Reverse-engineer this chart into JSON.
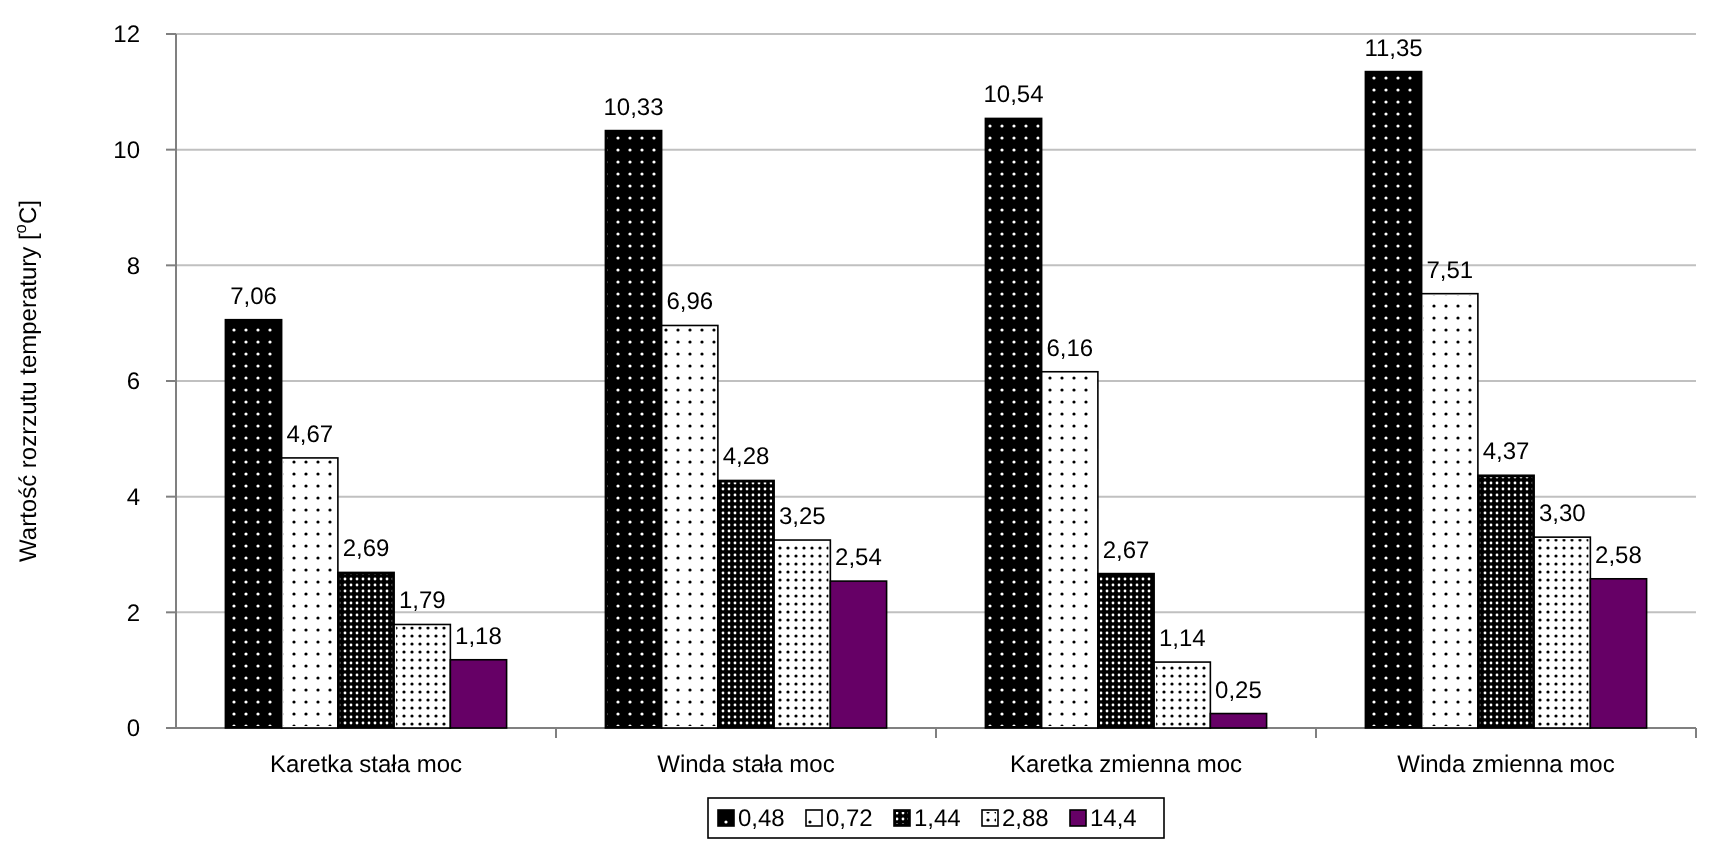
{
  "chart_data": {
    "type": "bar",
    "ylabel": "Wartość rozrzutu temperatury [$^{o}$C]",
    "categories": [
      "Karetka stała moc",
      "Winda stała moc",
      "Karetka zmienna moc",
      "Winda zmienna moc"
    ],
    "series": [
      {
        "name": "0,48",
        "color": "#000000",
        "values": [
          7.06,
          10.33,
          10.54,
          11.35
        ],
        "value_labels": [
          "7,06",
          "10,33",
          "10,54",
          "11,35"
        ]
      },
      {
        "name": "0,72",
        "color": "#ffffff",
        "values": [
          4.67,
          6.96,
          6.16,
          7.51
        ],
        "value_labels": [
          "4,67",
          "6,96",
          "6,16",
          "7,51"
        ]
      },
      {
        "name": "1,44",
        "color": "#000000",
        "values": [
          2.69,
          4.28,
          2.67,
          4.37
        ],
        "value_labels": [
          "2,69",
          "4,28",
          "2,67",
          "4,37"
        ]
      },
      {
        "name": "2,88",
        "color": "#ffffff",
        "values": [
          1.79,
          3.25,
          1.14,
          3.3
        ],
        "value_labels": [
          "1,79",
          "3,25",
          "1,14",
          "3,30"
        ]
      },
      {
        "name": "14,4",
        "color": "#660066",
        "values": [
          1.18,
          2.54,
          0.25,
          2.58
        ],
        "value_labels": [
          "1,18",
          "2,54",
          "0,25",
          "2,58"
        ]
      }
    ],
    "ylim": [
      0,
      12
    ],
    "yticks": [
      0,
      2,
      4,
      6,
      8,
      10,
      12
    ],
    "grid": "y",
    "legend": "bottom"
  }
}
